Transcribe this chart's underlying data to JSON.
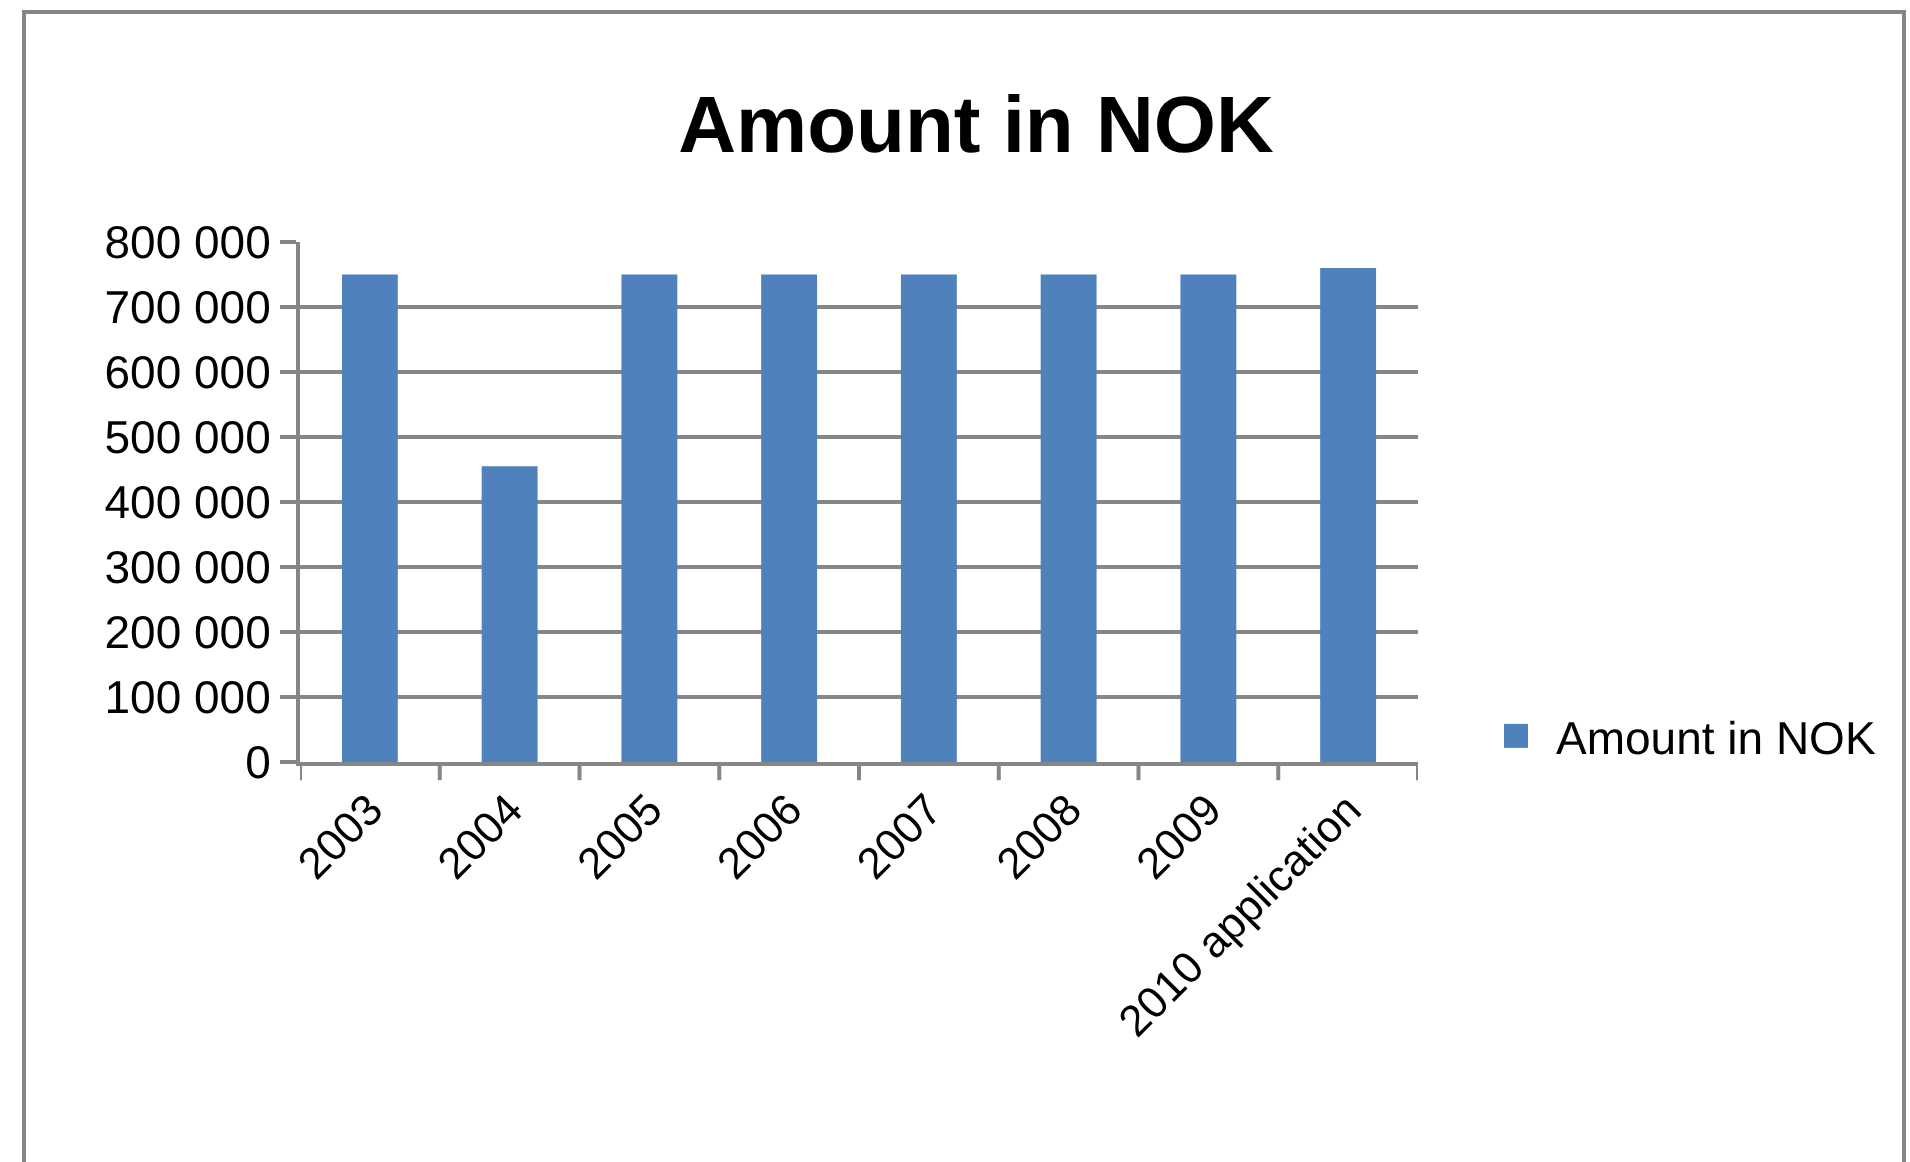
{
  "chart_data": {
    "type": "bar",
    "title": "Amount in NOK",
    "categories": [
      "2003",
      "2004",
      "2005",
      "2006",
      "2007",
      "2008",
      "2009",
      "2010 application"
    ],
    "series": [
      {
        "name": "Amount in NOK",
        "color": "#4f81bd",
        "values": [
          750000,
          455000,
          750000,
          750000,
          750000,
          750000,
          750000,
          760000
        ]
      }
    ],
    "ylim": [
      0,
      800000
    ],
    "yticks": [
      {
        "value": 0,
        "label": "0"
      },
      {
        "value": 100000,
        "label": "100 000"
      },
      {
        "value": 200000,
        "label": "200 000"
      },
      {
        "value": 300000,
        "label": "300 000"
      },
      {
        "value": 400000,
        "label": "400 000"
      },
      {
        "value": 500000,
        "label": "500 000"
      },
      {
        "value": 600000,
        "label": "600 000"
      },
      {
        "value": 700000,
        "label": "700 000"
      },
      {
        "value": 800000,
        "label": "800 000"
      }
    ],
    "grid": "y",
    "legend": "right"
  }
}
